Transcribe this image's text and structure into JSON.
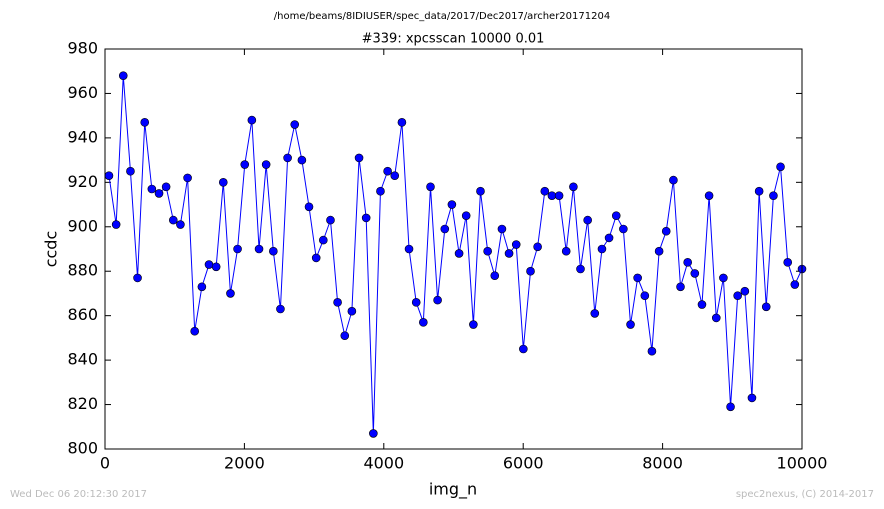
{
  "chart_data": {
    "type": "line",
    "suptitle": "/home/beams/8IDIUSER/spec_data/2017/Dec2017/archer20171204",
    "title": "#339: xpcsscan 10000 0.01",
    "x_label": "img_n",
    "y_label": "ccdc",
    "footer_left": "Wed Dec 06 20:12:30 2017",
    "footer_right": "spec2nexus, (C) 2014-2017",
    "xlim": [
      0,
      10000
    ],
    "xticks": [
      0,
      2000,
      4000,
      6000,
      8000,
      10000
    ],
    "ylim": [
      800,
      980
    ],
    "yticks": [
      800,
      820,
      840,
      860,
      880,
      900,
      920,
      940,
      960,
      980
    ],
    "x": [
      57,
      160,
      262,
      365,
      467,
      570,
      672,
      775,
      877,
      980,
      1082,
      1185,
      1287,
      1390,
      1492,
      1595,
      1697,
      1800,
      1902,
      2005,
      2107,
      2210,
      2312,
      2415,
      2517,
      2620,
      2722,
      2825,
      2927,
      3030,
      3132,
      3235,
      3337,
      3440,
      3542,
      3645,
      3747,
      3850,
      3952,
      4055,
      4157,
      4260,
      4362,
      4465,
      4567,
      4670,
      4772,
      4875,
      4977,
      5080,
      5182,
      5285,
      5387,
      5490,
      5592,
      5695,
      5797,
      5900,
      6002,
      6105,
      6207,
      6310,
      6412,
      6515,
      6617,
      6720,
      6822,
      6925,
      7027,
      7130,
      7232,
      7335,
      7437,
      7540,
      7642,
      7745,
      7847,
      7950,
      8052,
      8155,
      8257,
      8360,
      8462,
      8565,
      8667,
      8770,
      8872,
      8975,
      9077,
      9180,
      9282,
      9385,
      9487,
      9590,
      9692,
      9795,
      9897,
      10000
    ],
    "series": [
      {
        "color": "#0000ff",
        "values": [
          923,
          901,
          968,
          925,
          877,
          947,
          917,
          915,
          918,
          903,
          901,
          922,
          853,
          873,
          883,
          882,
          920,
          870,
          890,
          928,
          948,
          890,
          928,
          889,
          863,
          931,
          946,
          930,
          909,
          886,
          894,
          903,
          866,
          851,
          862,
          931,
          904,
          807,
          916,
          925,
          923,
          947,
          890,
          866,
          857,
          918,
          867,
          899,
          910,
          888,
          905,
          856,
          916,
          889,
          878,
          899,
          888,
          892,
          845,
          880,
          891,
          916,
          914,
          914,
          889,
          918,
          881,
          903,
          861,
          890,
          895,
          905,
          899,
          856,
          877,
          869,
          844,
          889,
          898,
          921,
          873,
          884,
          879,
          865,
          914,
          859,
          877,
          819,
          869,
          871,
          823,
          916,
          864,
          914,
          927,
          884,
          874,
          881
        ]
      }
    ]
  }
}
